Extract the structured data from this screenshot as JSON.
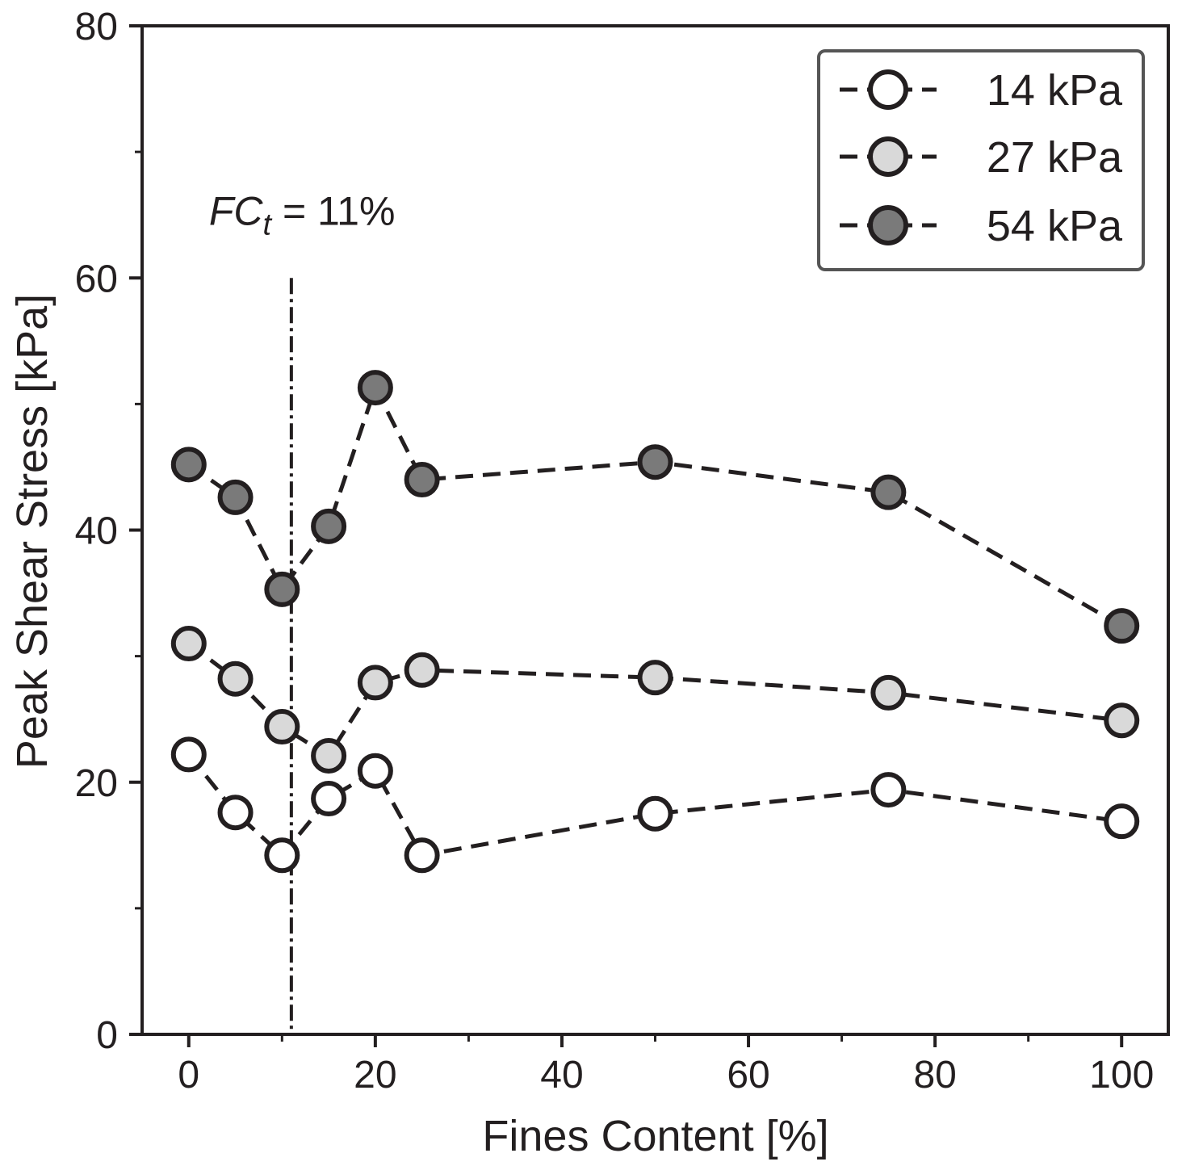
{
  "chart_data": {
    "type": "line",
    "xlabel": "Fines Content [%]",
    "ylabel": "Peak Shear Stress [kPa]",
    "xlim": [
      -5,
      105
    ],
    "ylim": [
      0,
      80
    ],
    "xticks": [
      0,
      20,
      40,
      60,
      80,
      100
    ],
    "yticks": [
      0,
      20,
      40,
      60,
      80
    ],
    "x_minor_ticks": [
      10,
      30,
      50,
      70,
      90
    ],
    "y_minor_ticks": [
      10,
      30,
      50,
      70
    ],
    "x": [
      0,
      5,
      10,
      15,
      20,
      25,
      50,
      75,
      100
    ],
    "series": [
      {
        "name": "14 kPa",
        "fill": "#ffffff",
        "values": [
          22.2,
          17.6,
          14.2,
          18.7,
          20.9,
          14.2,
          17.5,
          19.4,
          16.9
        ]
      },
      {
        "name": "27 kPa",
        "fill": "#d9d9d9",
        "values": [
          31.0,
          28.2,
          24.4,
          22.1,
          27.9,
          28.9,
          28.3,
          27.1,
          24.9
        ]
      },
      {
        "name": "54 kPa",
        "fill": "#7a7a7a",
        "values": [
          45.2,
          42.6,
          35.3,
          40.3,
          51.3,
          44.0,
          45.4,
          43.0,
          32.4
        ]
      }
    ],
    "threshold": {
      "x": 11,
      "y_top": 60,
      "label_main": "FC",
      "label_sub": "t",
      "label_rest": " = 11%"
    },
    "legend": "top-right",
    "grid": false,
    "colors": {
      "line": "#231f20",
      "frame": "#231f20",
      "legend_border": "#555555"
    }
  }
}
